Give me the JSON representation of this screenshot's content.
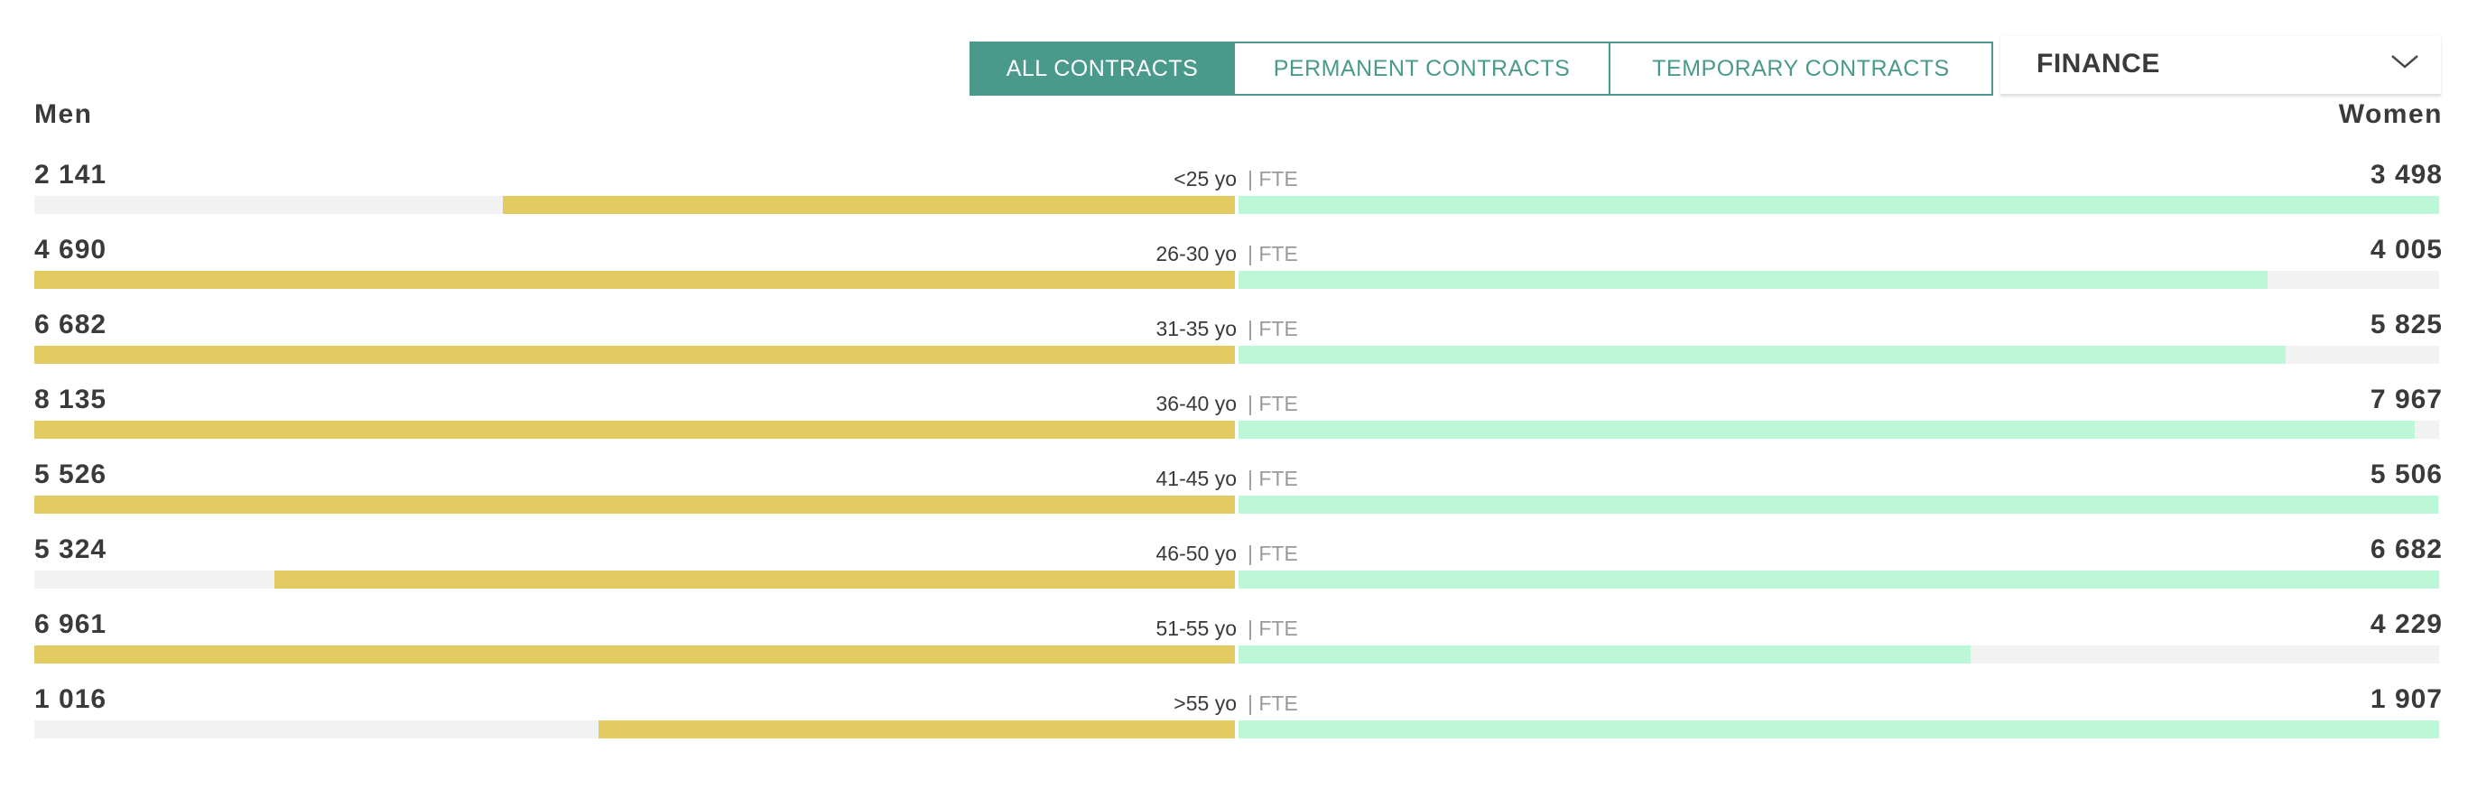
{
  "filters": {
    "tabs": [
      {
        "label": "ALL CONTRACTS",
        "active": true
      },
      {
        "label": "PERMANENT CONTRACTS",
        "active": false
      },
      {
        "label": "TEMPORARY CONTRACTS",
        "active": false
      }
    ],
    "dropdown": {
      "selected": "FINANCE",
      "icon": "chevron-down-icon"
    }
  },
  "colors": {
    "accent": "#4a9a8c",
    "men_bar": "#e2cc62",
    "women_bar": "#bcf7d7",
    "track": "#f2f2f2"
  },
  "chart_data": {
    "type": "bar",
    "orientation": "horizontal-butterfly",
    "left_label": "Men",
    "right_label": "Women",
    "unit_label": "FTE",
    "categories": [
      "<25 yo",
      "26-30 yo",
      "31-35 yo",
      "36-40 yo",
      "41-45 yo",
      "46-50 yo",
      "51-55 yo",
      ">55 yo"
    ],
    "series": [
      {
        "name": "Men",
        "values": [
          2141,
          4690,
          6682,
          8135,
          5526,
          5324,
          6961,
          1016
        ],
        "display": [
          "2 141",
          "4 690",
          "6 682",
          "8 135",
          "5 526",
          "5 324",
          "6 961",
          "1 016"
        ],
        "fill_fraction": [
          0.61,
          1.0,
          1.0,
          1.0,
          1.0,
          0.8,
          1.0,
          0.53
        ]
      },
      {
        "name": "Women",
        "values": [
          3498,
          4005,
          5825,
          7967,
          5506,
          6682,
          4229,
          1907
        ],
        "display": [
          "3 498",
          "4 005",
          "5 825",
          "7 967",
          "5 506",
          "6 682",
          "4 229",
          "1 907"
        ],
        "fill_fraction": [
          1.0,
          0.857,
          0.872,
          0.98,
          0.999,
          1.0,
          0.61,
          1.0
        ]
      }
    ]
  }
}
